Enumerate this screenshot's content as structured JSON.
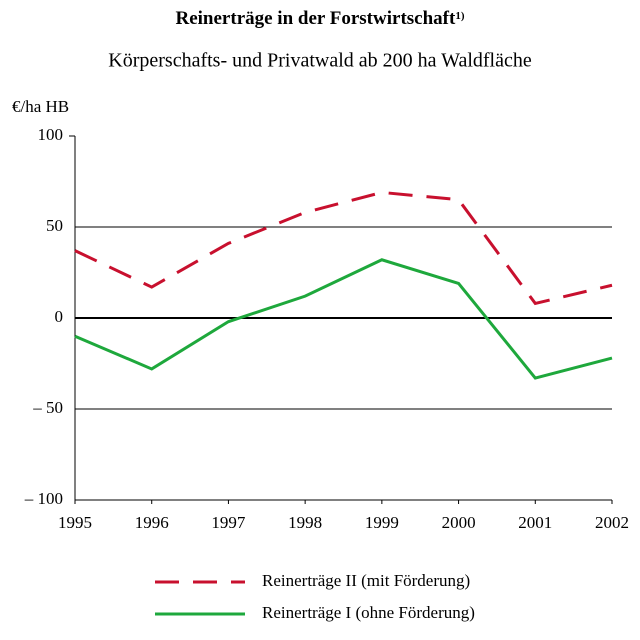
{
  "chart_data": {
    "type": "line",
    "title": "Reinerträge in der Forstwirtschaft",
    "title_note": "1)",
    "subtitle": "Körperschafts- und Privatwald ab 200 ha Waldfläche",
    "y_label": "€/ha HB",
    "x": [
      1995,
      1996,
      1997,
      1998,
      1999,
      2000,
      2001,
      2002
    ],
    "xlim": [
      1995,
      2002
    ],
    "xticks": [
      1995,
      1996,
      1997,
      1998,
      1999,
      2000,
      2001,
      2002
    ],
    "ylim": [
      -100,
      100
    ],
    "yticks": [
      100,
      50,
      0,
      {
        "value": -50,
        "label": "– 50"
      },
      {
        "value": -100,
        "label": "– 100"
      }
    ],
    "grid": true,
    "legend": "bottom",
    "series": [
      {
        "name": "Reinerträge II (mit Förderung)",
        "color": "#c8102e",
        "dashed": true,
        "values": [
          37,
          17,
          41,
          58,
          69,
          65,
          8,
          18
        ]
      },
      {
        "name": "Reinerträge I (ohne Förderung)",
        "color": "#1ea83c",
        "dashed": false,
        "values": [
          -10,
          -28,
          -2,
          12,
          32,
          19,
          -33,
          -22
        ]
      }
    ]
  }
}
